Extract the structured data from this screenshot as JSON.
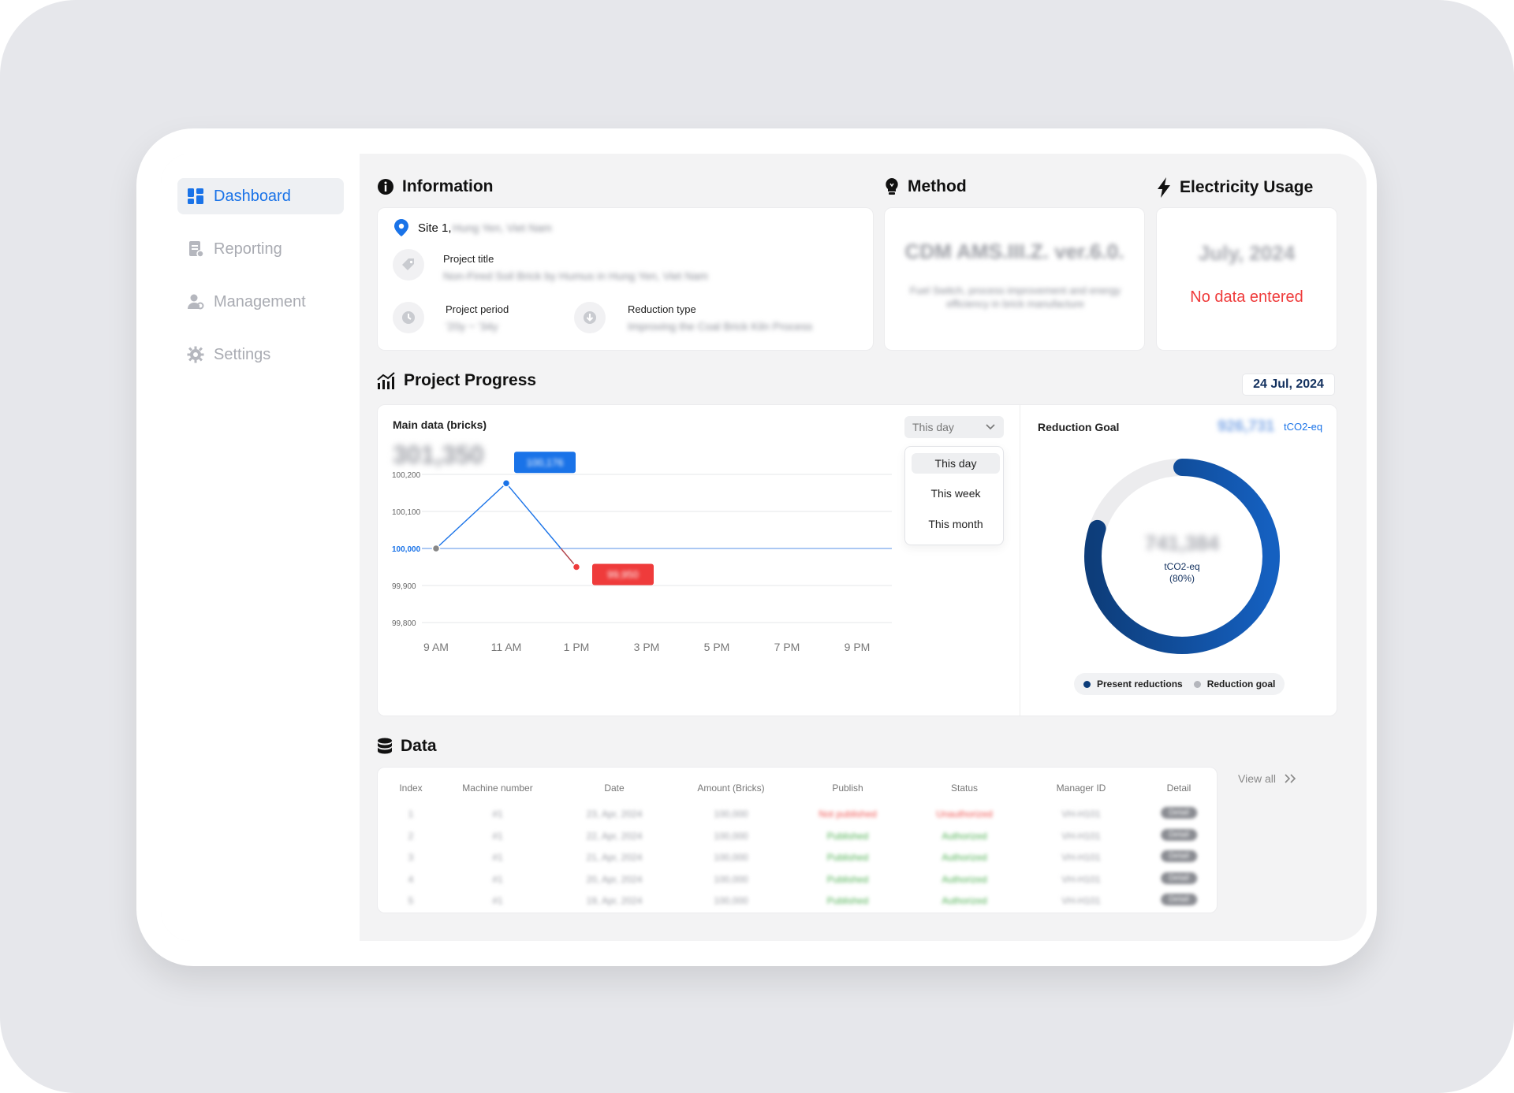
{
  "sidebar": {
    "items": [
      {
        "label": "Dashboard",
        "icon": "dashboard-icon",
        "active": true
      },
      {
        "label": "Reporting",
        "icon": "reporting-icon",
        "active": false
      },
      {
        "label": "Management",
        "icon": "management-icon",
        "active": false
      },
      {
        "label": "Settings",
        "icon": "gear-icon",
        "active": false
      }
    ]
  },
  "information": {
    "title": "Information",
    "site_label": "Site 1,",
    "site_value": "Hung Yen, Viet Nam",
    "project_title_label": "Project title",
    "project_title_value": "Non-Fired Soil Brick  by Humus in Hung Yen, Viet Nam",
    "project_period_label": "Project period",
    "project_period_value": "'20y ~ '34y",
    "reduction_type_label": "Reduction type",
    "reduction_type_value": "Improving the Coal Brick Kiln Process"
  },
  "method": {
    "title": "Method",
    "name": "CDM AMS.III.Z. ver.6.0.",
    "description": "Fuel Switch, process improvement and energy efficiency in brick manufacture"
  },
  "electricity": {
    "title": "Electricity Usage",
    "month": "July, 2024",
    "status": "No data entered"
  },
  "progress": {
    "title": "Project Progress",
    "date": "24 Jul, 2024",
    "main_label": "Main data (bricks)",
    "main_value": "301,350",
    "dropdown": {
      "selected": "This day",
      "options": [
        "This day",
        "This week",
        "This month"
      ]
    }
  },
  "chart_data": {
    "type": "line",
    "x": [
      "9 AM",
      "11 AM",
      "1 PM",
      "3 PM",
      "5 PM",
      "7 PM",
      "9 PM"
    ],
    "y_ticks": [
      "100,200",
      "100,100",
      "100,000",
      "99,900",
      "99,800"
    ],
    "ylim": [
      99800,
      100200
    ],
    "baseline": 100000,
    "series": [
      {
        "points": [
          {
            "x": "9 AM",
            "y": 100000
          },
          {
            "x": "11 AM",
            "y": 100176
          },
          {
            "x": "1 PM",
            "y": 99950
          }
        ]
      }
    ],
    "callouts": [
      {
        "x": "11 AM",
        "text": "100,176",
        "color": "#1a73e8"
      },
      {
        "x": "1 PM",
        "text": "99,950",
        "color": "#ef3b3b"
      }
    ]
  },
  "reduction_goal": {
    "title": "Reduction Goal",
    "goal_value": "926,731",
    "goal_unit": "tCO2-eq",
    "center_value": "741,384",
    "center_unit": "tCO2-eq",
    "center_percent": "(80%)",
    "percent": 0.8,
    "legend_present": "Present reductions",
    "legend_goal": "Reduction goal",
    "colors": {
      "present": "#0d3d7a",
      "goal": "#ececee"
    }
  },
  "data": {
    "title": "Data",
    "view_all": "View all",
    "columns": [
      "Index",
      "Machine number",
      "Date",
      "Amount (Bricks)",
      "Publish",
      "Status",
      "Manager ID",
      "Detail"
    ],
    "rows": [
      {
        "index": "1",
        "machine": "#1",
        "date": "23, Apr, 2024",
        "amount": "100,000",
        "publish": "Not published",
        "status": "Unauthorized",
        "manager": "VH-H101",
        "detail": "Detail",
        "ok": false
      },
      {
        "index": "2",
        "machine": "#1",
        "date": "22, Apr, 2024",
        "amount": "100,000",
        "publish": "Published",
        "status": "Authorized",
        "manager": "VH-H101",
        "detail": "Detail",
        "ok": true
      },
      {
        "index": "3",
        "machine": "#1",
        "date": "21, Apr, 2024",
        "amount": "100,000",
        "publish": "Published",
        "status": "Authorized",
        "manager": "VH-H101",
        "detail": "Detail",
        "ok": true
      },
      {
        "index": "4",
        "machine": "#1",
        "date": "20, Apr, 2024",
        "amount": "100,000",
        "publish": "Published",
        "status": "Authorized",
        "manager": "VH-H101",
        "detail": "Detail",
        "ok": true
      },
      {
        "index": "5",
        "machine": "#1",
        "date": "19, Apr, 2024",
        "amount": "100,000",
        "publish": "Published",
        "status": "Authorized",
        "manager": "VH-H101",
        "detail": "Detail",
        "ok": true
      }
    ]
  }
}
